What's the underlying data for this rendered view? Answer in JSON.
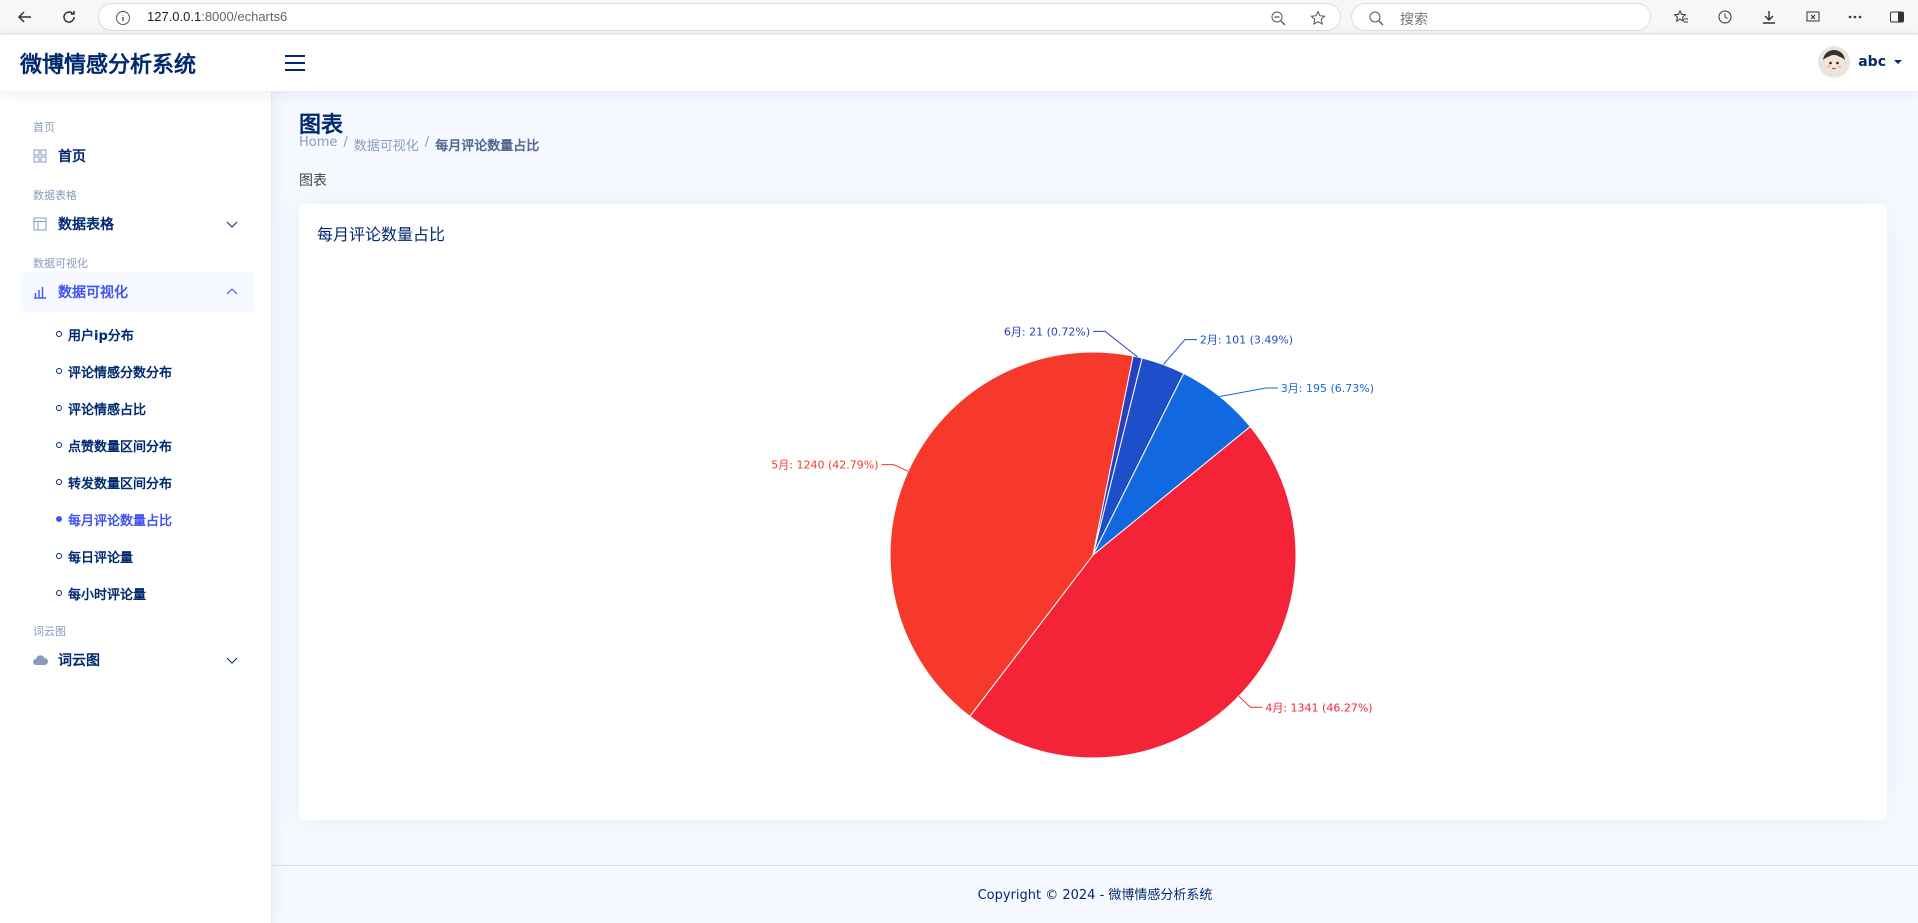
{
  "browser": {
    "url_host": "127.0.0.1",
    "url_rest": ":8000/echarts6",
    "search_placeholder": "搜索"
  },
  "header": {
    "logo": "微博情感分析系统",
    "user_name": "abc"
  },
  "sidebar": {
    "sections": [
      {
        "heading": "首页",
        "item": "首页",
        "icon": "grid-icon"
      },
      {
        "heading": "数据表格",
        "item": "数据表格",
        "icon": "table-icon"
      },
      {
        "heading": "数据可视化",
        "item": "数据可视化",
        "icon": "bar-chart-icon"
      },
      {
        "heading": "词云图",
        "item": "词云图",
        "icon": "cloud-icon"
      }
    ],
    "sub_items": [
      "用户ip分布",
      "评论情感分数分布",
      "评论情感占比",
      "点赞数量区间分布",
      "转发数量区间分布",
      "每月评论数量占比",
      "每日评论量",
      "每小时评论量"
    ],
    "active_sub": "每月评论数量占比"
  },
  "page": {
    "title": "图表",
    "breadcrumb": [
      "Home",
      "数据可视化",
      "每月评论数量占比"
    ],
    "section_label": "图表",
    "card_title": "每月评论数量占比"
  },
  "footer": {
    "text": "Copyright © 2024 - 微博情感分析系统"
  },
  "chart_data": {
    "type": "pie",
    "title": "每月评论数量占比",
    "slices": [
      {
        "label": "2月",
        "value": 101,
        "percent": "3.49%",
        "color": "#1c4fc9",
        "text": "2月: 101 (3.49%)"
      },
      {
        "label": "3月",
        "value": 195,
        "percent": "6.73%",
        "color": "#1268de",
        "text": "3月: 195 (6.73%)"
      },
      {
        "label": "4月",
        "value": 1341,
        "percent": "46.27%",
        "color": "#f52338",
        "text": "4月: 1341 (46.27%)"
      },
      {
        "label": "5月",
        "value": 1240,
        "percent": "42.79%",
        "color": "#f7392b",
        "text": "5月: 1240 (42.79%)"
      },
      {
        "label": "6月",
        "value": 21,
        "percent": "0.72%",
        "color": "#2a3fbf",
        "text": "6月: 21 (0.72%)"
      }
    ]
  }
}
